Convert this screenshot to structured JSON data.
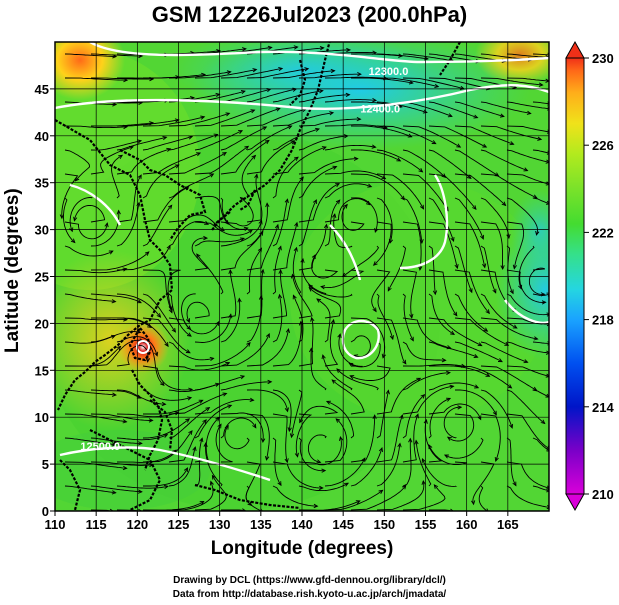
{
  "title": "GSM 12Z26Jul2023 (200.0hPa)",
  "x_axis": {
    "label": "Longitude (degrees)",
    "min": 110,
    "max": 170,
    "ticks": [
      110,
      115,
      120,
      125,
      130,
      135,
      140,
      145,
      150,
      155,
      160,
      165
    ]
  },
  "y_axis": {
    "label": "Latitude  (degrees)",
    "min": 0,
    "max": 50,
    "ticks": [
      0,
      5,
      10,
      15,
      20,
      25,
      30,
      35,
      40,
      45
    ]
  },
  "colorbar": {
    "ticks": [
      230,
      226,
      222,
      218,
      214,
      210
    ],
    "min": 210,
    "max": 230,
    "colors": [
      "#d900d9",
      "#7a00c8",
      "#0015c8",
      "#0050f0",
      "#1aa3ff",
      "#25d6e0",
      "#35e08a",
      "#44dc30",
      "#7ae22a",
      "#b2ea1e",
      "#f0e21a",
      "#ffae1a",
      "#ff6a18",
      "#f03018"
    ]
  },
  "contours": [
    {
      "label": "12300.0",
      "lon": 150.5,
      "lat": 46.5
    },
    {
      "label": "12400.0",
      "lon": 149.5,
      "lat": 42.5
    },
    {
      "label": "12500.0",
      "lon": 115.5,
      "lat": 6.5
    }
  ],
  "features": {
    "typhoon_center": {
      "lon": 120.5,
      "lat": 19.3
    }
  },
  "credit_line1": "Drawing by DCL (https://www.gfd-dennou.org/library/dcl/)",
  "credit_line2": "Data from http://database.rish.kyoto-u.ac.jp/arch/jmadata/"
}
